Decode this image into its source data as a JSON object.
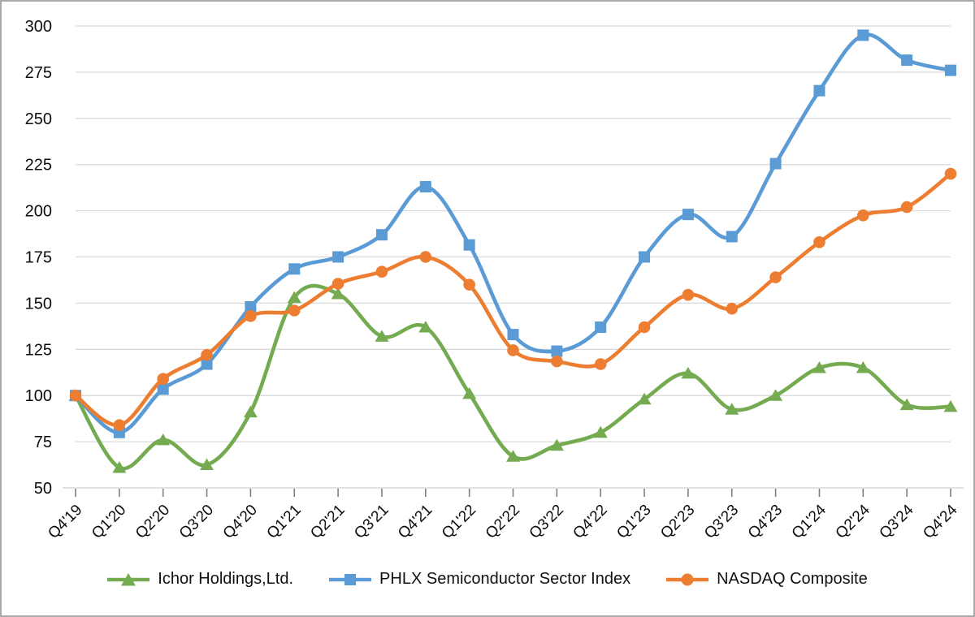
{
  "chart_data": {
    "type": "line",
    "title": "",
    "xlabel": "",
    "ylabel": "",
    "categories": [
      "Q4'19",
      "Q1'20",
      "Q2'20",
      "Q3'20",
      "Q4'20",
      "Q1'21",
      "Q2'21",
      "Q3'21",
      "Q4'21",
      "Q1'22",
      "Q2'22",
      "Q3'22",
      "Q4'22",
      "Q1'23",
      "Q2'23",
      "Q3'23",
      "Q4'23",
      "Q1'24",
      "Q2'24",
      "Q3'24",
      "Q4'24"
    ],
    "series": [
      {
        "name": "Ichor Holdings,Ltd.",
        "color": "#74AB50",
        "marker": "triangle",
        "values": [
          100,
          61,
          76,
          62.5,
          91,
          153,
          155,
          132,
          137,
          101,
          67,
          73,
          80,
          98,
          112,
          92.5,
          100,
          115,
          115,
          95,
          94
        ]
      },
      {
        "name": "PHLX Semiconductor Sector Index",
        "color": "#5B9BD5",
        "marker": "square",
        "values": [
          100,
          80,
          103.5,
          117,
          148,
          168.5,
          175,
          187,
          213,
          181.5,
          133,
          124,
          137,
          175,
          198,
          186,
          225.5,
          265,
          295,
          281.5,
          276
        ]
      },
      {
        "name": "NASDAQ Composite",
        "color": "#ED7D31",
        "marker": "circle",
        "values": [
          100,
          84,
          109,
          122,
          143,
          146,
          160.5,
          167,
          175,
          160,
          124.5,
          118.5,
          117,
          137,
          154.5,
          147,
          164,
          183,
          197.5,
          202,
          220
        ]
      }
    ],
    "y_axis": {
      "min": 50,
      "max": 300,
      "step": 25,
      "ticks": [
        50,
        75,
        100,
        125,
        150,
        175,
        200,
        225,
        250,
        275,
        300
      ]
    },
    "style": {
      "grid": true,
      "smooth_lines": true,
      "legend_position": "bottom",
      "gridline_color": "#dadada",
      "axis_line_color": "#d0d0d0",
      "tick_color": "#7f7f7f",
      "text_color": "#0d0d0d",
      "border_color": "#aaaaaa",
      "background": "#ffffff"
    }
  }
}
